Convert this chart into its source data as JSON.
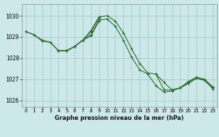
{
  "title": "Graphe pression niveau de la mer (hPa)",
  "background_color": "#cce8e8",
  "grid_color": "#aacccc",
  "line_color": "#2d6e2d",
  "ylim": [
    1025.7,
    1030.55
  ],
  "xlim": [
    -0.5,
    23.5
  ],
  "yticks": [
    1026,
    1027,
    1028,
    1029,
    1030
  ],
  "xticks": [
    0,
    1,
    2,
    3,
    4,
    5,
    6,
    7,
    8,
    9,
    10,
    11,
    12,
    13,
    14,
    15,
    16,
    17,
    18,
    19,
    20,
    21,
    22,
    23
  ],
  "series": [
    [
      1029.25,
      1029.1,
      1028.8,
      1028.75,
      1028.35,
      1028.35,
      1028.55,
      1028.85,
      1029.3,
      1029.95,
      1030.0,
      1029.75,
      1029.2,
      1028.45,
      1027.75,
      1027.3,
      1027.25,
      1026.5,
      1026.5,
      1026.6,
      1026.9,
      1027.1,
      1027.0,
      1026.65
    ],
    [
      1029.25,
      1029.1,
      1028.85,
      1028.75,
      1028.35,
      1028.35,
      1028.55,
      1028.85,
      1029.25,
      1029.9,
      null,
      null,
      null,
      null,
      null,
      null,
      null,
      null,
      null,
      null,
      null,
      null,
      null,
      null
    ],
    [
      null,
      null,
      null,
      null,
      1028.35,
      1028.35,
      1028.55,
      1028.85,
      1029.1,
      1029.8,
      1029.85,
      1029.5,
      1028.85,
      1028.05,
      1027.45,
      1027.25,
      1026.7,
      1026.4,
      1026.45,
      1026.6,
      1026.8,
      1027.05,
      1026.95,
      1026.55
    ],
    [
      null,
      null,
      null,
      null,
      1028.35,
      1028.35,
      1028.55,
      1028.85,
      1029.05,
      1029.75,
      null,
      null,
      null,
      null,
      null,
      null,
      1027.25,
      1026.85,
      1026.5,
      1026.6,
      1026.85,
      1027.1,
      1026.95,
      1026.6
    ]
  ]
}
